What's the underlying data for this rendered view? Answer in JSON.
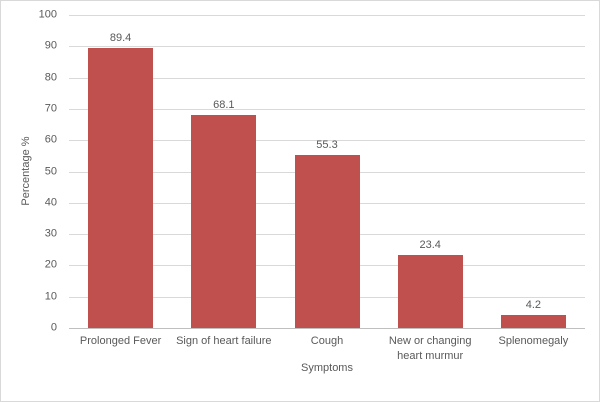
{
  "chart_data": {
    "type": "bar",
    "title": "",
    "categories": [
      "Prolonged Fever",
      "Sign of heart failure",
      "Cough",
      "New or changing heart murmur",
      "Splenomegaly"
    ],
    "values": [
      89.4,
      68.1,
      55.3,
      23.4,
      4.2
    ],
    "value_labels": [
      "89.4",
      "68.1",
      "55.3",
      "23.4",
      "4.2"
    ],
    "xlabel": "Symptoms",
    "ylabel": "Percentage %",
    "ylim": [
      0,
      100
    ],
    "yticks": [
      0,
      10,
      20,
      30,
      40,
      50,
      60,
      70,
      80,
      90,
      100
    ],
    "grid": true,
    "legend_position": "none",
    "bar_color": "#C0504D"
  },
  "colors": {
    "bar": "#C0504D",
    "text": "#595959",
    "gridline": "#D9D9D9",
    "axis_line": "#BFBFBF",
    "frame_border": "#D9D9D9",
    "background": "#FFFFFF"
  }
}
